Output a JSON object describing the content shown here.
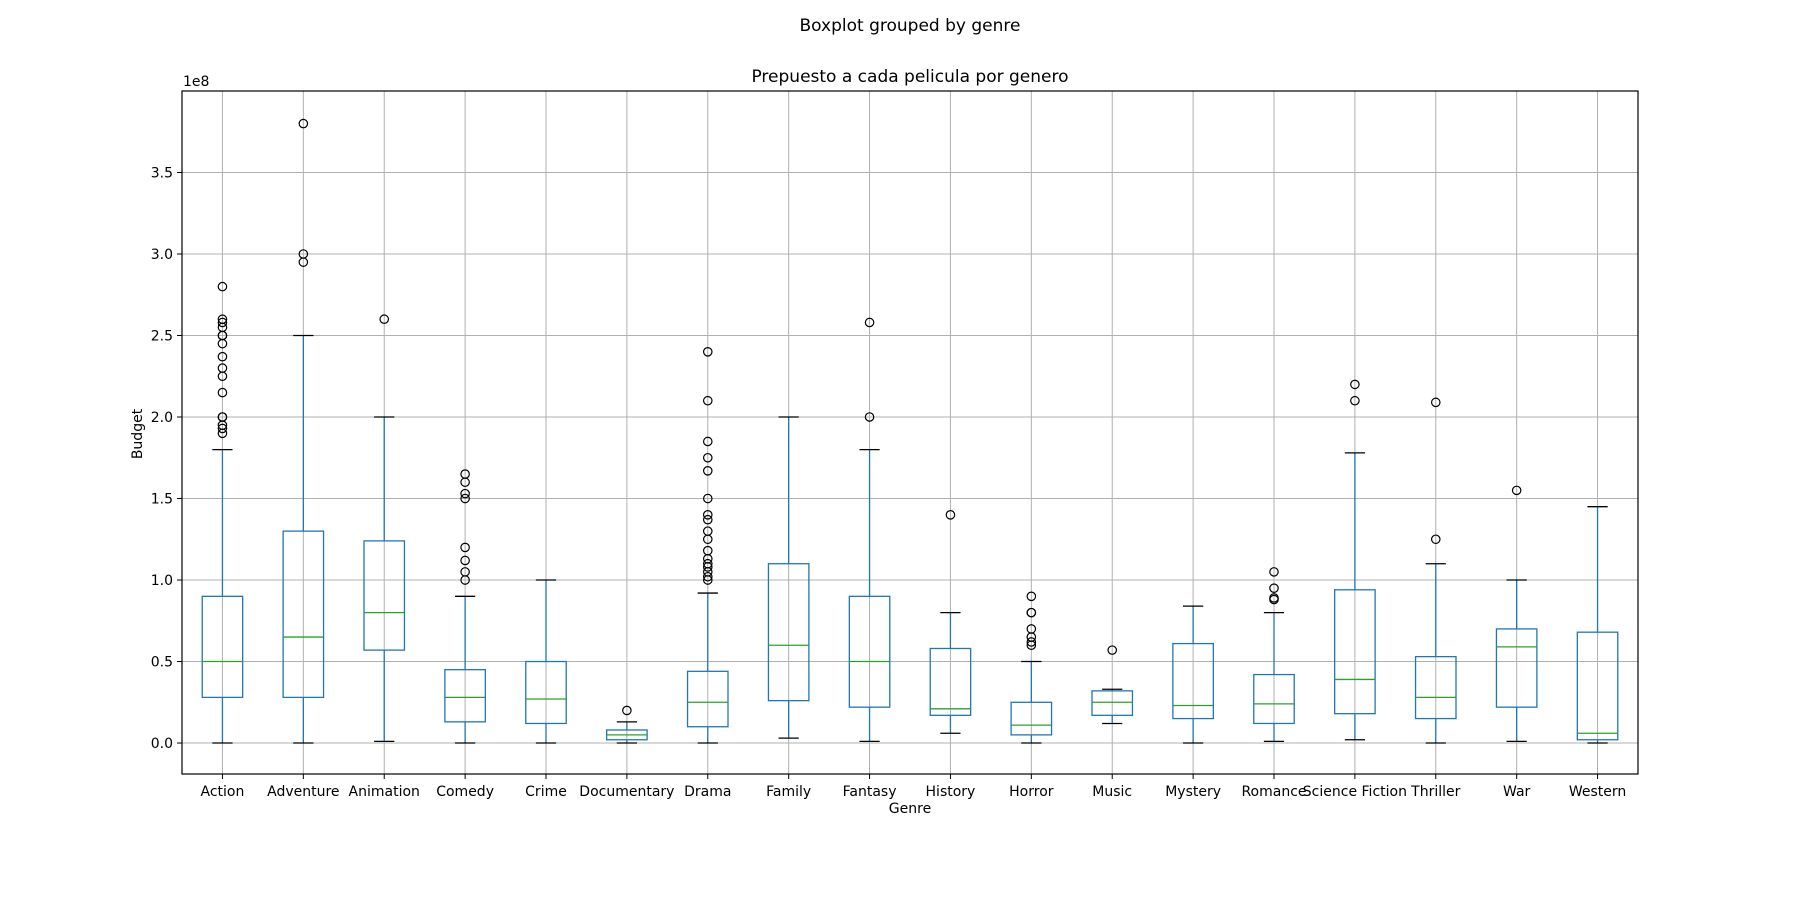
{
  "chart_data": {
    "type": "boxplot",
    "suptitle": "Boxplot grouped by genre",
    "title": "Prepuesto a cada pelicula por genero",
    "xlabel": "Genre",
    "ylabel": "Budget",
    "y_offset_label": "1e8",
    "ylim": [
      -0.19,
      4.0
    ],
    "yticks": [
      {
        "value": 0.0,
        "label": "0.0"
      },
      {
        "value": 0.5,
        "label": "0.5"
      },
      {
        "value": 1.0,
        "label": "1.0"
      },
      {
        "value": 1.5,
        "label": "1.5"
      },
      {
        "value": 2.0,
        "label": "2.0"
      },
      {
        "value": 2.5,
        "label": "2.5"
      },
      {
        "value": 3.0,
        "label": "3.0"
      },
      {
        "value": 3.5,
        "label": "3.5"
      }
    ],
    "grid": true,
    "colors": {
      "box": "#1f77b4",
      "median": "#2ca02c",
      "cap": "#000000",
      "grid": "#b0b0b0",
      "flier": "#000000"
    },
    "series": [
      {
        "category": "Action",
        "whislo": 0.0,
        "q1": 0.28,
        "median": 0.5,
        "q3": 0.9,
        "whishi": 1.8,
        "fliers": [
          1.9,
          1.93,
          1.95,
          2.0,
          2.0,
          2.15,
          2.25,
          2.3,
          2.37,
          2.45,
          2.5,
          2.5,
          2.55,
          2.58,
          2.6,
          2.8
        ]
      },
      {
        "category": "Adventure",
        "whislo": 0.0,
        "q1": 0.28,
        "median": 0.65,
        "q3": 1.3,
        "whishi": 2.5,
        "fliers": [
          2.95,
          3.0,
          3.8
        ]
      },
      {
        "category": "Animation",
        "whislo": 0.01,
        "q1": 0.57,
        "median": 0.8,
        "q3": 1.24,
        "whishi": 2.0,
        "fliers": [
          2.6
        ]
      },
      {
        "category": "Comedy",
        "whislo": 0.0,
        "q1": 0.13,
        "median": 0.28,
        "q3": 0.45,
        "whishi": 0.9,
        "fliers": [
          1.0,
          1.05,
          1.12,
          1.2,
          1.5,
          1.53,
          1.6,
          1.65
        ]
      },
      {
        "category": "Crime",
        "whislo": 0.0,
        "q1": 0.12,
        "median": 0.27,
        "q3": 0.5,
        "whishi": 1.0,
        "fliers": []
      },
      {
        "category": "Documentary",
        "whislo": 0.0,
        "q1": 0.02,
        "median": 0.05,
        "q3": 0.08,
        "whishi": 0.13,
        "fliers": [
          0.2
        ]
      },
      {
        "category": "Drama",
        "whislo": 0.0,
        "q1": 0.1,
        "median": 0.25,
        "q3": 0.44,
        "whishi": 0.92,
        "fliers": [
          1.0,
          1.02,
          1.05,
          1.08,
          1.1,
          1.13,
          1.18,
          1.25,
          1.3,
          1.37,
          1.4,
          1.5,
          1.67,
          1.75,
          1.85,
          2.1,
          2.4
        ]
      },
      {
        "category": "Family",
        "whislo": 0.03,
        "q1": 0.26,
        "median": 0.6,
        "q3": 1.1,
        "whishi": 2.0,
        "fliers": []
      },
      {
        "category": "Fantasy",
        "whislo": 0.01,
        "q1": 0.22,
        "median": 0.5,
        "q3": 0.9,
        "whishi": 1.8,
        "fliers": [
          2.0,
          2.58
        ]
      },
      {
        "category": "History",
        "whislo": 0.06,
        "q1": 0.17,
        "median": 0.21,
        "q3": 0.58,
        "whishi": 0.8,
        "fliers": [
          1.4
        ]
      },
      {
        "category": "Horror",
        "whislo": 0.0,
        "q1": 0.05,
        "median": 0.11,
        "q3": 0.25,
        "whishi": 0.5,
        "fliers": [
          0.6,
          0.62,
          0.65,
          0.7,
          0.8,
          0.8,
          0.9
        ]
      },
      {
        "category": "Music",
        "whislo": 0.12,
        "q1": 0.17,
        "median": 0.25,
        "q3": 0.32,
        "whishi": 0.33,
        "fliers": [
          0.57
        ]
      },
      {
        "category": "Mystery",
        "whislo": 0.0,
        "q1": 0.15,
        "median": 0.23,
        "q3": 0.61,
        "whishi": 0.84,
        "fliers": []
      },
      {
        "category": "Romance",
        "whislo": 0.01,
        "q1": 0.12,
        "median": 0.24,
        "q3": 0.42,
        "whishi": 0.8,
        "fliers": [
          0.88,
          0.89,
          0.95,
          1.05
        ]
      },
      {
        "category": "Science Fiction",
        "whislo": 0.02,
        "q1": 0.18,
        "median": 0.39,
        "q3": 0.94,
        "whishi": 1.78,
        "fliers": [
          2.1,
          2.2
        ]
      },
      {
        "category": "Thriller",
        "whislo": 0.0,
        "q1": 0.15,
        "median": 0.28,
        "q3": 0.53,
        "whishi": 1.1,
        "fliers": [
          1.25,
          2.09
        ]
      },
      {
        "category": "War",
        "whislo": 0.01,
        "q1": 0.22,
        "median": 0.59,
        "q3": 0.7,
        "whishi": 1.0,
        "fliers": [
          1.55
        ]
      },
      {
        "category": "Western",
        "whislo": 0.0,
        "q1": 0.02,
        "median": 0.06,
        "q3": 0.68,
        "whishi": 1.45,
        "fliers": []
      }
    ]
  }
}
